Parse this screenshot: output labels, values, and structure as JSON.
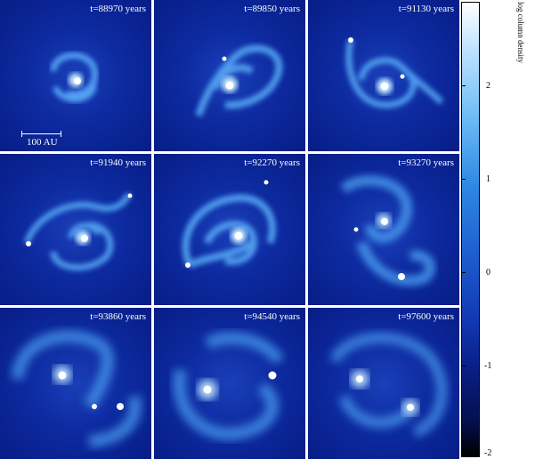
{
  "panels": [
    {
      "label": "t=88970 years"
    },
    {
      "label": "t=89850 years"
    },
    {
      "label": "t=91130 years"
    },
    {
      "label": "t=91940 years"
    },
    {
      "label": "t=92270 years"
    },
    {
      "label": "t=93270 years"
    },
    {
      "label": "t=93860 years"
    },
    {
      "label": "t=94540 years"
    },
    {
      "label": "t=97600 years"
    }
  ],
  "scale_bar": {
    "label": "100 AU"
  },
  "colorbar": {
    "title": "log column density",
    "ticks": [
      "2",
      "1",
      "0",
      "-1",
      "-2"
    ],
    "colors": {
      "max": "#ffffff",
      "high": "#6fbcf5",
      "mid": "#1f5fd0",
      "low": "#0a1f8a",
      "min": "#000000"
    }
  }
}
